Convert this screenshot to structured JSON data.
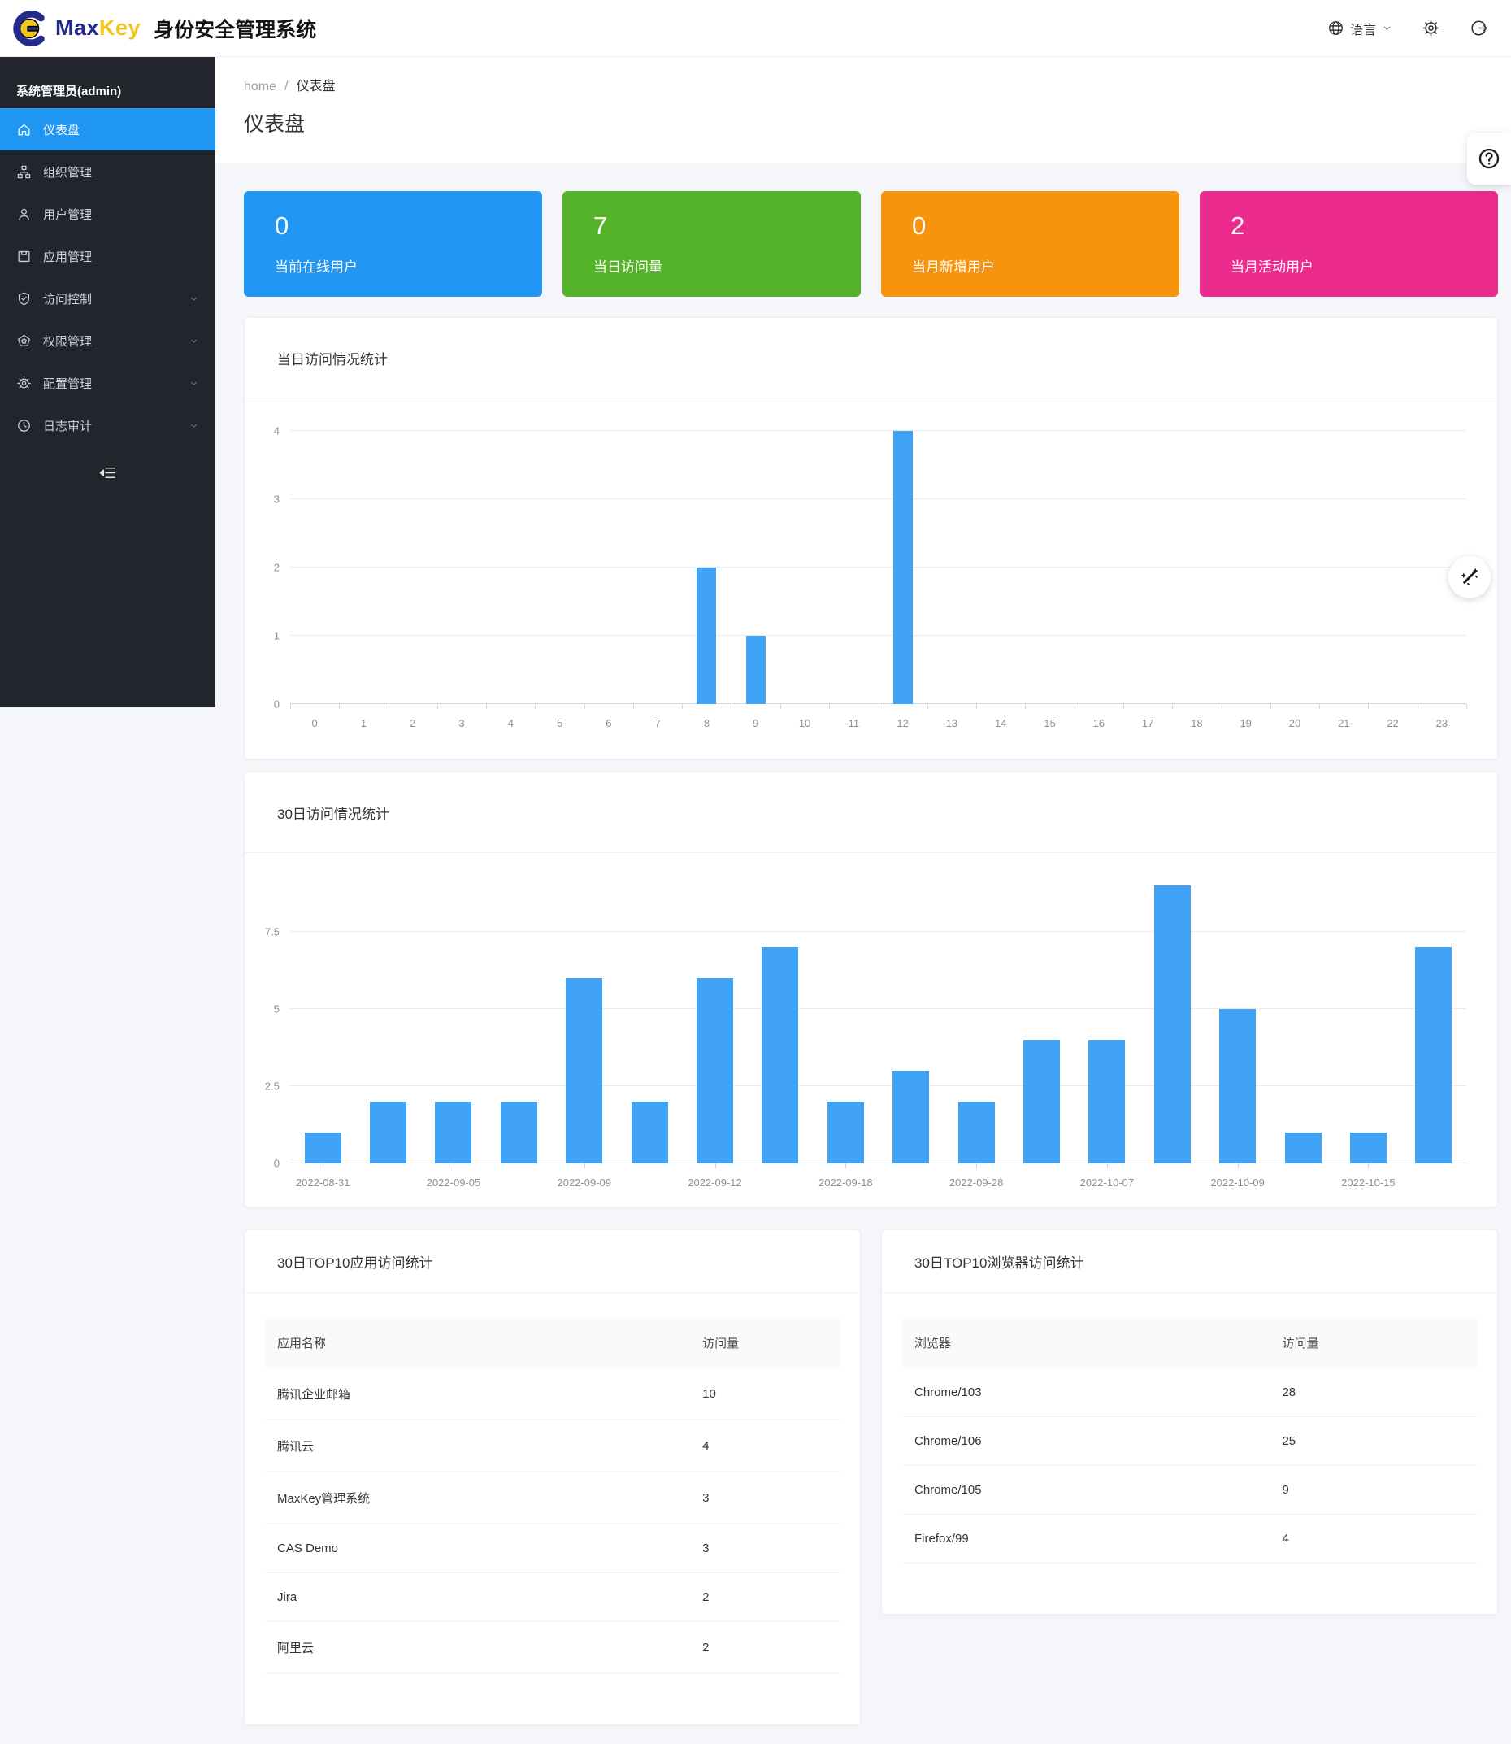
{
  "header": {
    "brand_max": "Max",
    "brand_key": "Key",
    "brand_suffix": "身份安全管理系统",
    "language_label": "语言",
    "logo_icon": "maxkey-logo-icon",
    "icons": {
      "language": "globe-icon",
      "language_caret": "chevron-down-icon",
      "settings": "settings-gear-icon",
      "logout": "logout-icon"
    }
  },
  "sidebar": {
    "user": "系统管理员(admin)",
    "collapse_icon": "menu-fold-icon",
    "items": [
      {
        "key": "dashboard",
        "label": "仪表盘",
        "icon": "home-icon",
        "active": true,
        "chevron": false
      },
      {
        "key": "organization",
        "label": "组织管理",
        "icon": "org-icon",
        "active": false,
        "chevron": false
      },
      {
        "key": "users",
        "label": "用户管理",
        "icon": "user-icon",
        "active": false,
        "chevron": false
      },
      {
        "key": "applications",
        "label": "应用管理",
        "icon": "app-icon",
        "active": false,
        "chevron": false
      },
      {
        "key": "access-control",
        "label": "访问控制",
        "icon": "shield-check-icon",
        "active": false,
        "chevron": true
      },
      {
        "key": "permissions",
        "label": "权限管理",
        "icon": "pentagon-icon",
        "active": false,
        "chevron": true
      },
      {
        "key": "configuration",
        "label": "配置管理",
        "icon": "gear-icon",
        "active": false,
        "chevron": true
      },
      {
        "key": "audit-log",
        "label": "日志审计",
        "icon": "clock-icon",
        "active": false,
        "chevron": true
      }
    ]
  },
  "breadcrumb": {
    "home": "home",
    "sep": "/",
    "current": "仪表盘"
  },
  "page_title": "仪表盘",
  "stat_cards": [
    {
      "key": "online-users",
      "value": "0",
      "label": "当前在线用户",
      "color": "#2196f3"
    },
    {
      "key": "today-visits",
      "value": "7",
      "label": "当日访问量",
      "color": "#55b32a"
    },
    {
      "key": "month-new-users",
      "value": "0",
      "label": "当月新增用户",
      "color": "#f7930d"
    },
    {
      "key": "month-active-users",
      "value": "2",
      "label": "当月活动用户",
      "color": "#ec2b8e"
    }
  ],
  "chart_data": [
    {
      "key": "daily-visits",
      "type": "bar",
      "title": "当日访问情况统计",
      "x_tick_labels": [
        "0",
        "1",
        "2",
        "3",
        "4",
        "5",
        "6",
        "7",
        "8",
        "9",
        "10",
        "11",
        "12",
        "13",
        "14",
        "15",
        "16",
        "17",
        "18",
        "19",
        "20",
        "21",
        "22",
        "23"
      ],
      "values": [
        0,
        0,
        0,
        0,
        0,
        0,
        0,
        0,
        2,
        1,
        0,
        0,
        4,
        0,
        0,
        0,
        0,
        0,
        0,
        0,
        0,
        0,
        0,
        0
      ],
      "yticks": [
        [
          0,
          "0"
        ],
        [
          1,
          "1"
        ],
        [
          2,
          "2"
        ],
        [
          3,
          "3"
        ],
        [
          4,
          "4"
        ]
      ],
      "ylim": [
        0,
        4
      ],
      "grid": true,
      "legend": "none",
      "bar_color": "#41a3f5"
    },
    {
      "key": "30day-visits",
      "type": "bar",
      "title": "30日访问情况统计",
      "x_tick_labels": [
        "2022-08-31",
        "",
        "2022-09-05",
        "",
        "2022-09-09",
        "",
        "2022-09-12",
        "",
        "2022-09-18",
        "",
        "2022-09-28",
        "",
        "2022-10-07",
        "",
        "2022-10-09",
        "",
        "2022-10-15",
        ""
      ],
      "values": [
        1,
        2,
        2,
        2,
        6,
        2,
        6,
        7,
        2,
        3,
        2,
        4,
        4,
        9,
        5,
        1,
        1,
        7
      ],
      "yticks": [
        [
          0,
          "0"
        ],
        [
          2.5,
          "2.5"
        ],
        [
          5,
          "5"
        ],
        [
          7.5,
          "7.5"
        ]
      ],
      "ylim": [
        0,
        10
      ],
      "grid": true,
      "legend": "none",
      "bar_color": "#41a3f5"
    }
  ],
  "tables": [
    {
      "key": "top-apps",
      "title": "30日TOP10应用访问统计",
      "headers": [
        "应用名称",
        "访问量"
      ],
      "rows": [
        [
          "腾讯企业邮箱",
          "10"
        ],
        [
          "腾讯云",
          "4"
        ],
        [
          "MaxKey管理系统",
          "3"
        ],
        [
          "CAS Demo",
          "3"
        ],
        [
          "Jira",
          "2"
        ],
        [
          "阿里云",
          "2"
        ]
      ]
    },
    {
      "key": "top-browsers",
      "title": "30日TOP10浏览器访问统计",
      "headers": [
        "浏览器",
        "访问量"
      ],
      "rows": [
        [
          "Chrome/103",
          "28"
        ],
        [
          "Chrome/106",
          "25"
        ],
        [
          "Chrome/105",
          "9"
        ],
        [
          "Firefox/99",
          "4"
        ]
      ]
    }
  ],
  "floating": {
    "help": "help-icon",
    "wand": "magic-wand-icon"
  }
}
